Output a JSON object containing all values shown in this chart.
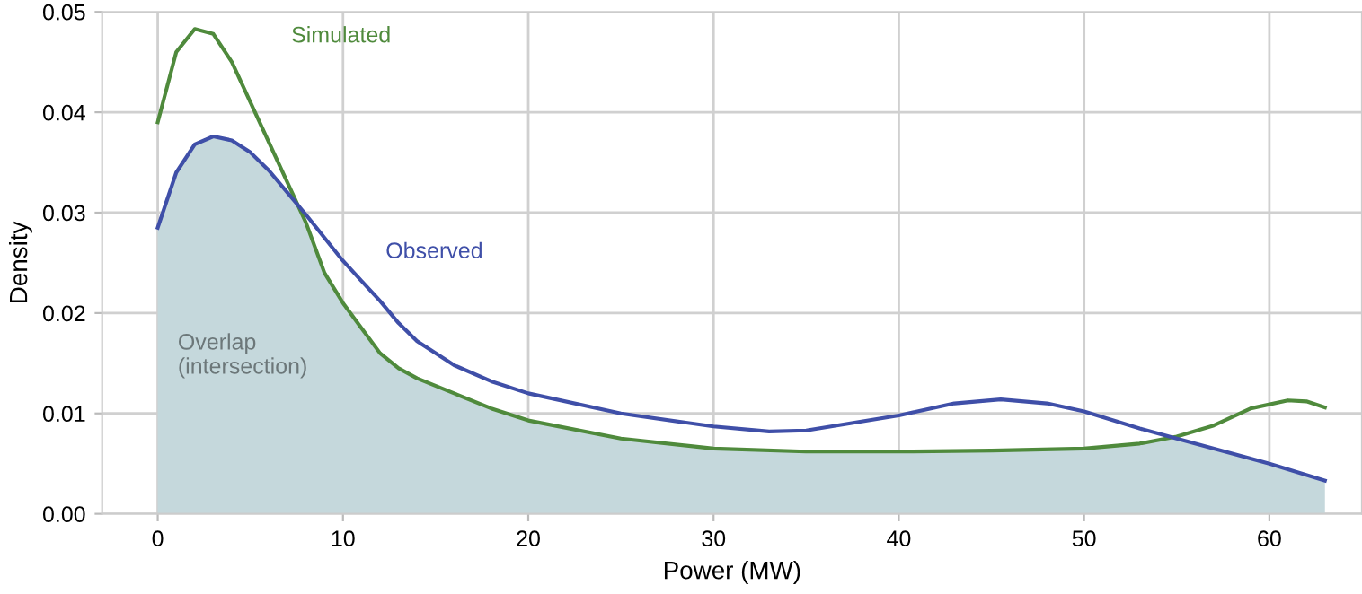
{
  "chart_data": {
    "type": "line",
    "xlabel": "Power (MW)",
    "ylabel": "Density",
    "xlim": [
      -3,
      65
    ],
    "ylim": [
      0,
      0.05
    ],
    "xticks": [
      0,
      10,
      20,
      30,
      40,
      50,
      60
    ],
    "yticks": [
      {
        "value": 0,
        "label": "0.00"
      },
      {
        "value": 0.01,
        "label": "0.01"
      },
      {
        "value": 0.02,
        "label": "0.02"
      },
      {
        "value": 0.03,
        "label": "0.03"
      },
      {
        "value": 0.04,
        "label": "0.04"
      },
      {
        "value": 0.05,
        "label": "0.05"
      }
    ],
    "grid": true,
    "legend": false,
    "series": [
      {
        "type": "area",
        "name": "Overlap\n(intersection)",
        "color": "#c5d8dc",
        "x": [
          0,
          1,
          2,
          3,
          4,
          5,
          6,
          7,
          7.8,
          8,
          9,
          10,
          11,
          12,
          13,
          14,
          16,
          18,
          20,
          25,
          30,
          35,
          40,
          45,
          50,
          53,
          55,
          58,
          60,
          63
        ],
        "values": [
          0.0285,
          0.034,
          0.0368,
          0.0376,
          0.0372,
          0.036,
          0.0342,
          0.032,
          0.03,
          0.029,
          0.024,
          0.021,
          0.0185,
          0.016,
          0.0145,
          0.0135,
          0.012,
          0.0105,
          0.0093,
          0.0075,
          0.0065,
          0.0062,
          0.0062,
          0.0063,
          0.0065,
          0.007,
          0.0075,
          0.006,
          0.005,
          0.0033
        ]
      },
      {
        "name": "Simulated",
        "color": "#4f8a3c",
        "x": [
          0,
          1,
          2,
          3,
          4,
          5,
          6,
          7,
          8,
          9,
          10,
          11,
          12,
          13,
          14,
          16,
          18,
          20,
          25,
          30,
          35,
          40,
          45,
          50,
          53,
          55,
          57,
          59,
          61,
          62,
          63
        ],
        "values": [
          0.039,
          0.046,
          0.0483,
          0.0478,
          0.045,
          0.041,
          0.037,
          0.033,
          0.029,
          0.024,
          0.021,
          0.0185,
          0.016,
          0.0145,
          0.0135,
          0.012,
          0.0105,
          0.0093,
          0.0075,
          0.0065,
          0.0062,
          0.0062,
          0.0063,
          0.0065,
          0.007,
          0.0077,
          0.0088,
          0.0105,
          0.0113,
          0.0112,
          0.0106
        ]
      },
      {
        "name": "Observed",
        "color": "#3f4fa8",
        "x": [
          0,
          1,
          2,
          3,
          4,
          5,
          6,
          7,
          8,
          9,
          10,
          11,
          12,
          13,
          14,
          16,
          18,
          20,
          25,
          30,
          33,
          35,
          40,
          43,
          45.5,
          48,
          50,
          53,
          55,
          58,
          60,
          63
        ],
        "values": [
          0.0285,
          0.034,
          0.0368,
          0.0376,
          0.0372,
          0.036,
          0.0342,
          0.032,
          0.0298,
          0.0275,
          0.0252,
          0.0232,
          0.0212,
          0.019,
          0.0172,
          0.0148,
          0.0132,
          0.012,
          0.01,
          0.0087,
          0.0082,
          0.0083,
          0.0098,
          0.011,
          0.0114,
          0.011,
          0.0102,
          0.0085,
          0.0075,
          0.006,
          0.005,
          0.0033
        ]
      }
    ]
  }
}
